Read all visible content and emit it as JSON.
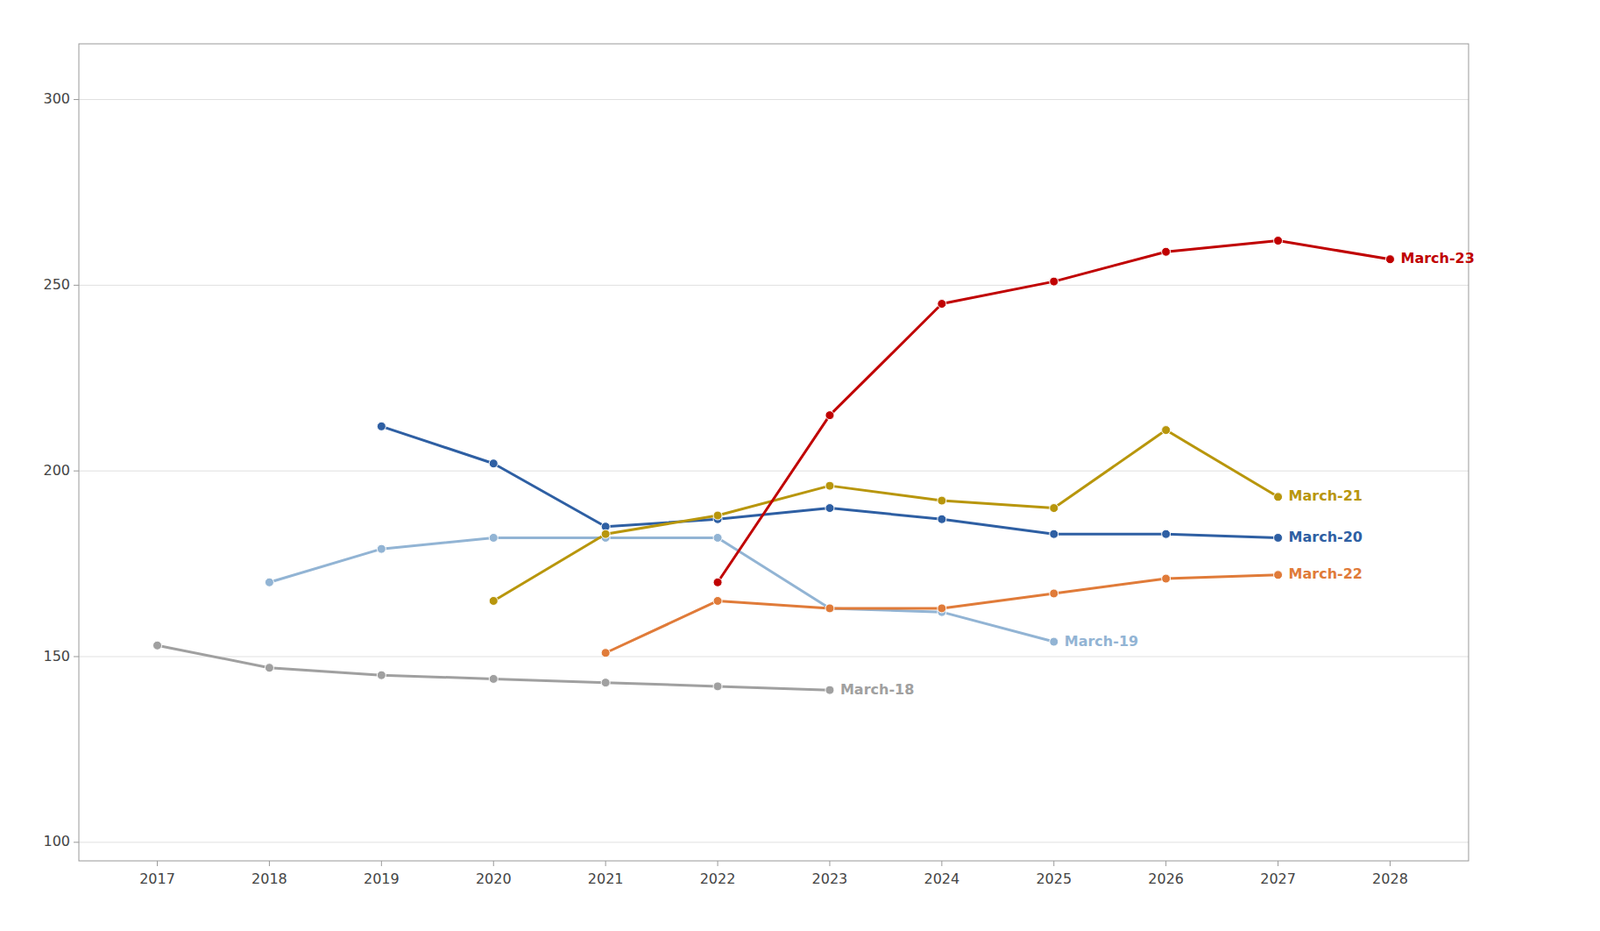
{
  "chart_data": {
    "type": "line",
    "xlim": [
      2016.3,
      2028.7
    ],
    "ylim": [
      95,
      315
    ],
    "xticks": [
      2017,
      2018,
      2019,
      2020,
      2021,
      2022,
      2023,
      2024,
      2025,
      2026,
      2027,
      2028
    ],
    "yticks": [
      100,
      150,
      200,
      250,
      300
    ],
    "grid": true,
    "marker": "circle",
    "line_style": "solid",
    "series": [
      {
        "name": "March-18",
        "color": "#a0a0a0",
        "x": [
          2017,
          2018,
          2019,
          2020,
          2021,
          2022,
          2023
        ],
        "values": [
          153,
          147,
          145,
          144,
          143,
          142,
          141
        ]
      },
      {
        "name": "March-19",
        "color": "#92b4d4",
        "x": [
          2018,
          2019,
          2020,
          2021,
          2022,
          2023,
          2024,
          2025
        ],
        "values": [
          170,
          179,
          182,
          182,
          182,
          163,
          162,
          154
        ]
      },
      {
        "name": "March-20",
        "color": "#2e5fa3",
        "x": [
          2019,
          2020,
          2021,
          2022,
          2023,
          2024,
          2025,
          2026,
          2027
        ],
        "values": [
          212,
          202,
          185,
          187,
          190,
          187,
          183,
          183,
          182
        ]
      },
      {
        "name": "March-21",
        "color": "#b8960c",
        "x": [
          2020,
          2021,
          2022,
          2023,
          2024,
          2025,
          2026,
          2027
        ],
        "values": [
          165,
          183,
          188,
          196,
          192,
          190,
          211,
          193
        ]
      },
      {
        "name": "March-22",
        "color": "#e07b39",
        "x": [
          2021,
          2022,
          2023,
          2024,
          2025,
          2026,
          2027
        ],
        "values": [
          151,
          165,
          163,
          163,
          167,
          171,
          172
        ]
      },
      {
        "name": "March-23",
        "color": "#c00000",
        "x": [
          2022,
          2023,
          2024,
          2025,
          2026,
          2027,
          2028
        ],
        "values": [
          170,
          215,
          245,
          251,
          259,
          262,
          257
        ]
      }
    ]
  }
}
